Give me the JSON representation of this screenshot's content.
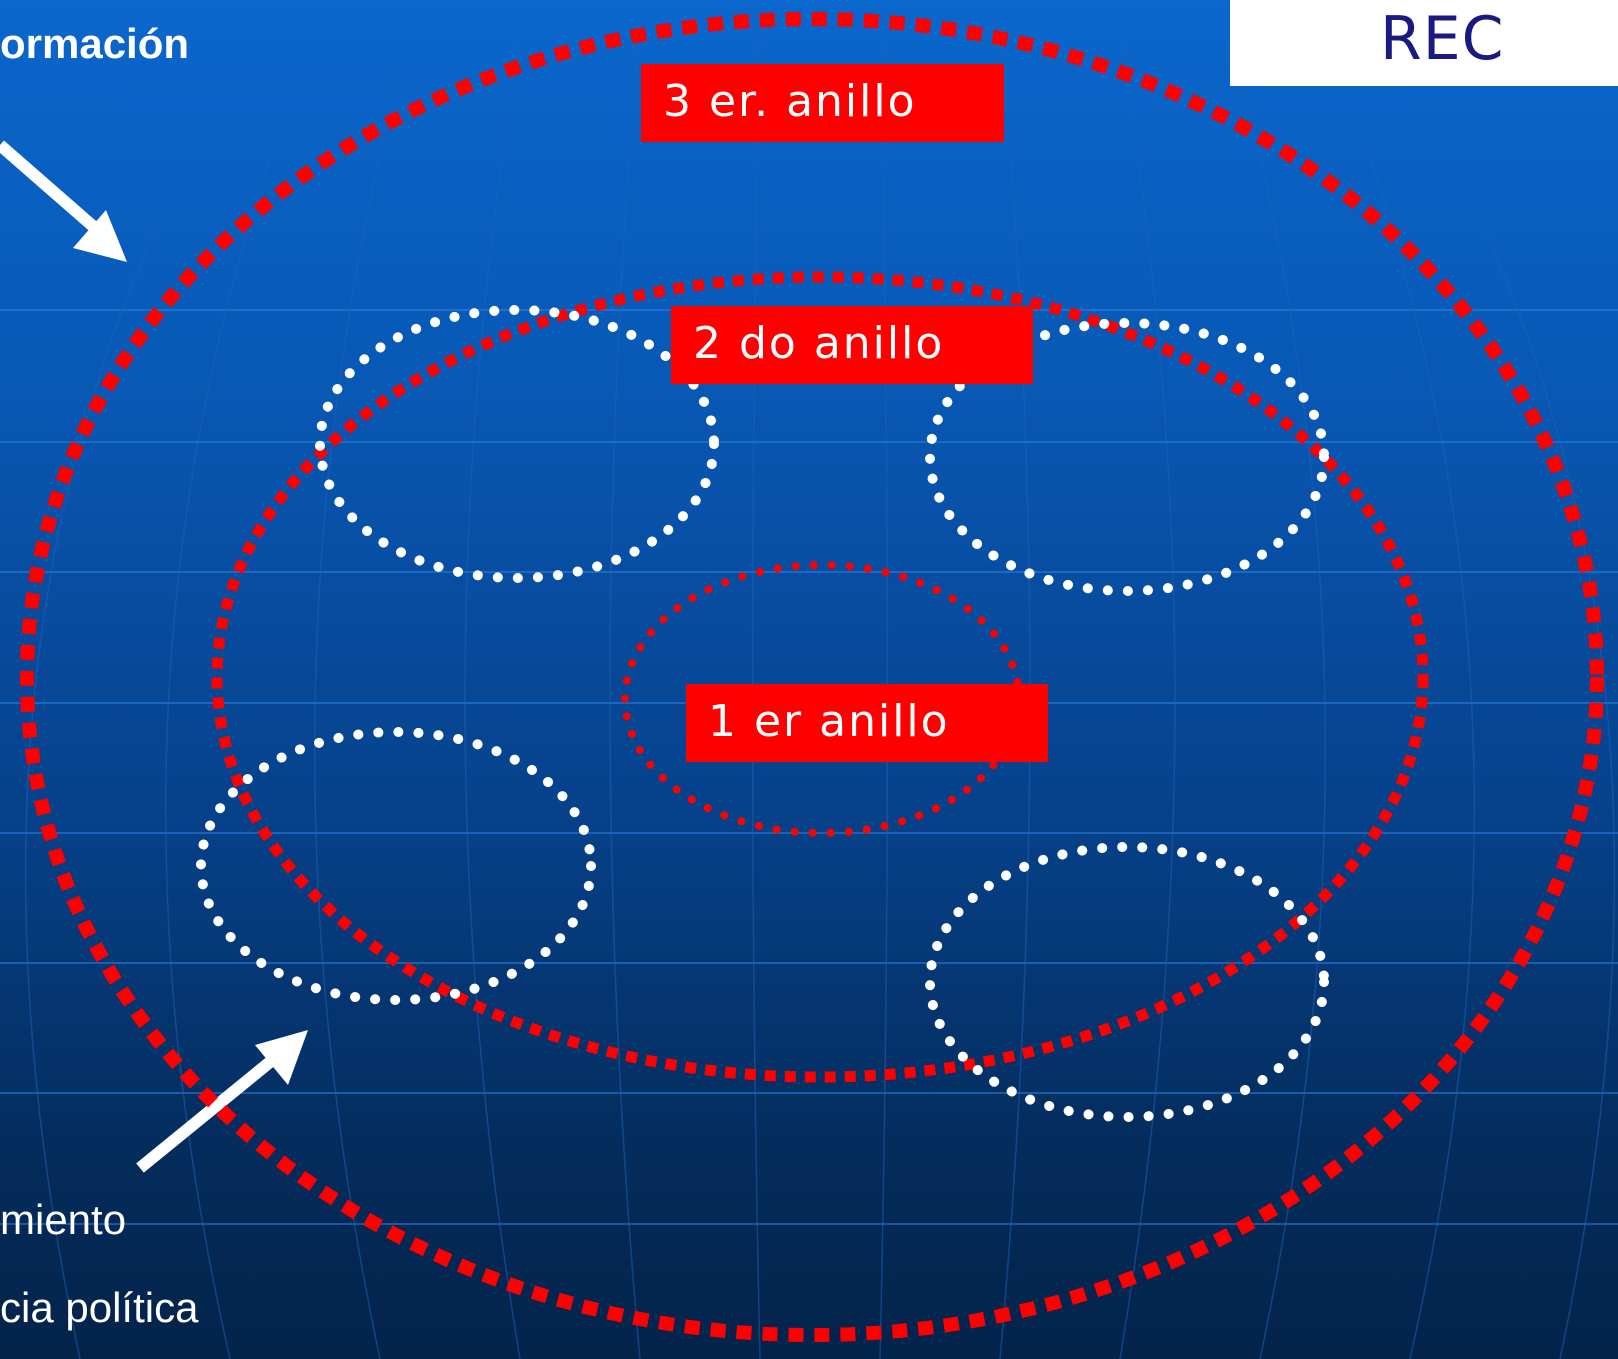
{
  "header": {
    "title_fragment": "ormación",
    "rec_label": "REC"
  },
  "rings": {
    "third": "3 er. anillo",
    "second": "2 do anillo",
    "first": "1 er anillo"
  },
  "left_list": {
    "item_1": "miento",
    "item_2": "cia política"
  },
  "colors": {
    "ring_red": "#ff0000",
    "cluster_white": "#ffffff",
    "rec_text": "#1a1a80",
    "grid_line": "#2b7fe0"
  }
}
